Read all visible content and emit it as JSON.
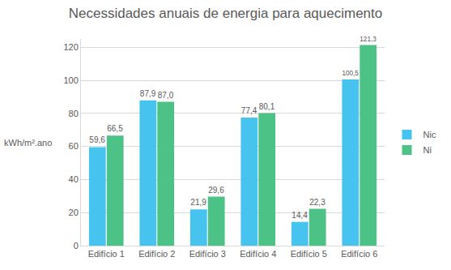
{
  "chart_data": {
    "type": "bar",
    "title": "Necessidades anuais de energia para aquecimento",
    "y_label": "kWh/m².ano",
    "categories": [
      "Edifício 1",
      "Edifício 2",
      "Edifício 3",
      "Edifício 4",
      "Edifício 5",
      "Edifício 6"
    ],
    "series": [
      {
        "name": "Nic",
        "color": "#47C3F0",
        "values": [
          59.6,
          87.9,
          21.9,
          77.4,
          14.4,
          100.5
        ],
        "value_labels": [
          "59,6",
          "87,9",
          "21,9",
          "77,4",
          "14,4",
          "100,5"
        ]
      },
      {
        "name": "Ni",
        "color": "#4CC286",
        "values": [
          66.5,
          87.0,
          29.6,
          80.1,
          22.3,
          121.3
        ],
        "value_labels": [
          "66,5",
          "87,0",
          "29,6",
          "80,1",
          "22,3",
          "121,3"
        ]
      }
    ],
    "ylim": [
      0,
      125
    ],
    "yticks": [
      0,
      20,
      40,
      60,
      80,
      100,
      120
    ],
    "grid": true,
    "legend": "right",
    "data_labels": true
  }
}
